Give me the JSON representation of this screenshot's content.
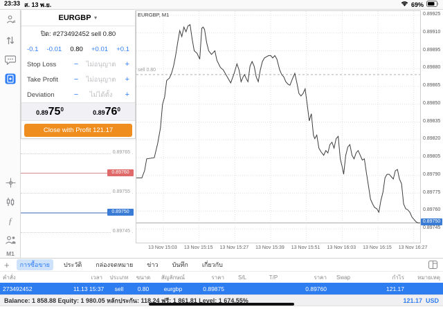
{
  "status_bar": {
    "time": "23:33",
    "date": "ส. 13 พ.ย.",
    "battery": "69%"
  },
  "sidebar": {
    "timeframe": "M1"
  },
  "order_panel": {
    "symbol": "EURGBP",
    "caret": "▼",
    "position_line": "ปิด: #273492452 sell 0.80",
    "stepper": {
      "dec_big": "-0.1",
      "dec_small": "-0.01",
      "value": "0.80",
      "inc_small": "+0.01",
      "inc_big": "+0.1"
    },
    "minus": "−",
    "plus": "+",
    "fields": [
      {
        "label": "Stop Loss",
        "placeholder": "ไม่อนุญาต"
      },
      {
        "label": "Take Profit",
        "placeholder": "ไม่อนุญาต"
      },
      {
        "label": "Deviation",
        "placeholder": "ไม่ได้ตั้ง"
      }
    ],
    "bid": {
      "prefix": "0.89",
      "big": "75",
      "sup": "0"
    },
    "ask": {
      "prefix": "0.89",
      "big": "76",
      "sup": "0"
    },
    "close_button": "Close with Profit 121.17"
  },
  "tick_panel": {
    "levels": [
      {
        "price": "0.89765",
        "type": "dotted"
      },
      {
        "price": "0.89760",
        "type": "ask"
      },
      {
        "price": "0.89755",
        "type": "dotted"
      },
      {
        "price": "0.89750",
        "type": "bid"
      },
      {
        "price": "0.89745",
        "type": "dotted"
      }
    ]
  },
  "chart_data": {
    "type": "line",
    "title": "EURGBP, M1",
    "symbol": "EURGBP",
    "timeframe": "M1",
    "sell_marker": {
      "label": "sell 0.80",
      "price": 0.89875
    },
    "current_price": 0.8975,
    "ylim": [
      0.897334,
      0.899285
    ],
    "y_ticks": [
      0.89745,
      0.8976,
      0.89775,
      0.8979,
      0.89805,
      0.8982,
      0.89835,
      0.8985,
      0.89865,
      0.8988,
      0.89895,
      0.8991,
      0.89925
    ],
    "x_labels": [
      "13 Nov 15:03",
      "13 Nov 15:15",
      "13 Nov 15:27",
      "13 Nov 15:39",
      "13 Nov 15:51",
      "13 Nov 16:03",
      "13 Nov 16:15",
      "13 Nov 16:27"
    ],
    "points": [
      [
        0,
        0.89788
      ],
      [
        8,
        0.89788
      ],
      [
        12,
        0.89794
      ],
      [
        15,
        0.89804
      ],
      [
        26,
        0.89805
      ],
      [
        31,
        0.89817
      ],
      [
        35,
        0.8983
      ],
      [
        38,
        0.8985
      ],
      [
        41,
        0.89856
      ],
      [
        44,
        0.8987
      ],
      [
        48,
        0.89872
      ],
      [
        51,
        0.89876
      ],
      [
        54,
        0.89882
      ],
      [
        57,
        0.89891
      ],
      [
        60,
        0.89902
      ],
      [
        63,
        0.89912
      ],
      [
        66,
        0.89907
      ],
      [
        69,
        0.89915
      ],
      [
        72,
        0.89911
      ],
      [
        75,
        0.89916
      ],
      [
        78,
        0.89917
      ],
      [
        81,
        0.89905
      ],
      [
        84,
        0.89895
      ],
      [
        88,
        0.89893
      ],
      [
        92,
        0.89888
      ],
      [
        95,
        0.89914
      ],
      [
        97,
        0.89915
      ],
      [
        99,
        0.89913
      ],
      [
        102,
        0.89902
      ],
      [
        105,
        0.89895
      ],
      [
        109,
        0.89892
      ],
      [
        114,
        0.89895
      ],
      [
        117,
        0.89887
      ],
      [
        122,
        0.89881
      ],
      [
        126,
        0.89879
      ],
      [
        130,
        0.89875
      ],
      [
        134,
        0.89871
      ],
      [
        137,
        0.89868
      ],
      [
        142,
        0.89876
      ],
      [
        146,
        0.89884
      ],
      [
        149,
        0.89879
      ],
      [
        152,
        0.89869
      ],
      [
        155,
        0.89873
      ],
      [
        157,
        0.89875
      ],
      [
        160,
        0.89871
      ],
      [
        162,
        0.89869
      ],
      [
        165,
        0.89882
      ],
      [
        168,
        0.89886
      ],
      [
        171,
        0.89882
      ],
      [
        174,
        0.89873
      ],
      [
        177,
        0.89869
      ],
      [
        180,
        0.89879
      ],
      [
        183,
        0.89886
      ],
      [
        186,
        0.89889
      ],
      [
        189,
        0.8989
      ],
      [
        192,
        0.89891
      ],
      [
        195,
        0.89891
      ],
      [
        198,
        0.89889
      ],
      [
        201,
        0.89891
      ],
      [
        204,
        0.89888
      ],
      [
        208,
        0.89879
      ],
      [
        211,
        0.89875
      ],
      [
        214,
        0.89873
      ],
      [
        217,
        0.89869
      ],
      [
        220,
        0.89867
      ],
      [
        223,
        0.89866
      ],
      [
        227,
        0.89872
      ],
      [
        230,
        0.89876
      ],
      [
        233,
        0.89868
      ],
      [
        236,
        0.89859
      ],
      [
        239,
        0.89857
      ],
      [
        242,
        0.89859
      ],
      [
        245,
        0.89863
      ],
      [
        248,
        0.8985
      ],
      [
        251,
        0.89836
      ],
      [
        254,
        0.89842
      ],
      [
        257,
        0.89824
      ],
      [
        259,
        0.89821
      ],
      [
        262,
        0.89824
      ],
      [
        265,
        0.89813
      ],
      [
        268,
        0.8981
      ],
      [
        272,
        0.89807
      ],
      [
        275,
        0.89811
      ],
      [
        278,
        0.89809
      ],
      [
        281,
        0.89816
      ],
      [
        284,
        0.89818
      ],
      [
        287,
        0.89813
      ],
      [
        290,
        0.89821
      ],
      [
        293,
        0.89823
      ],
      [
        296,
        0.89804
      ],
      [
        299,
        0.89797
      ],
      [
        301,
        0.89791
      ],
      [
        304,
        0.89807
      ],
      [
        307,
        0.89814
      ],
      [
        310,
        0.89816
      ],
      [
        313,
        0.89807
      ],
      [
        316,
        0.89804
      ],
      [
        319,
        0.89809
      ],
      [
        322,
        0.89811
      ],
      [
        325,
        0.89807
      ],
      [
        328,
        0.89803
      ],
      [
        331,
        0.89804
      ],
      [
        334,
        0.89792
      ],
      [
        337,
        0.89781
      ],
      [
        340,
        0.8977
      ],
      [
        343,
        0.89766
      ],
      [
        346,
        0.89763
      ],
      [
        349,
        0.89762
      ],
      [
        352,
        0.89759
      ],
      [
        355,
        0.89769
      ],
      [
        358,
        0.89776
      ],
      [
        361,
        0.89788
      ],
      [
        364,
        0.89791
      ],
      [
        367,
        0.89791
      ],
      [
        370,
        0.89789
      ],
      [
        373,
        0.89787
      ],
      [
        376,
        0.89794
      ],
      [
        379,
        0.89795
      ],
      [
        382,
        0.89787
      ],
      [
        385,
        0.89783
      ],
      [
        388,
        0.89766
      ],
      [
        391,
        0.89762
      ],
      [
        394,
        0.89761
      ],
      [
        397,
        0.89759
      ],
      [
        400,
        0.89755
      ],
      [
        403,
        0.89753
      ],
      [
        406,
        0.89751
      ],
      [
        409,
        0.8975
      ],
      [
        412,
        0.8975
      ]
    ]
  },
  "tabs": {
    "add_label": "+",
    "items": [
      "การซื้อขาย",
      "ประวัติ",
      "กล่องจดหมาย",
      "ข่าว",
      "บันทึก",
      "เกี่ยวกับ"
    ],
    "selected_index": 0
  },
  "table": {
    "headers": [
      "คำสั่ง",
      "เวลา",
      "ประเภท",
      "ขนาด",
      "สัญลักษณ์",
      "ราคา",
      "S/L",
      "T/P",
      "ราคา",
      "Swap",
      "กำไร",
      "หมายเหตุ"
    ],
    "row": [
      "273492452",
      "11.13 15:37",
      "sell",
      "0.80",
      "eurgbp",
      "0.89875",
      "",
      "",
      "0.89760",
      "",
      "121.17",
      ""
    ]
  },
  "summary": {
    "balance_line": "Balance: 1 858.88 Equity: 1 980.05 หลักประกัน: 118.24 ฟรี: 1 861.81 Level: 1 674.55%",
    "profit": "121.17",
    "currency": "USD"
  },
  "colors": {
    "accent_blue": "#2e7cf6",
    "row_blue": "#2e7df0",
    "orange": "#ef8e1e",
    "ask_red": "#d98b8b",
    "bid_blue": "#9ab1d8",
    "ask_tag": "#e06a6a",
    "bid_tag": "#3a7bd5",
    "line": "#3c3c3c",
    "grid": "#e0e0e0"
  }
}
